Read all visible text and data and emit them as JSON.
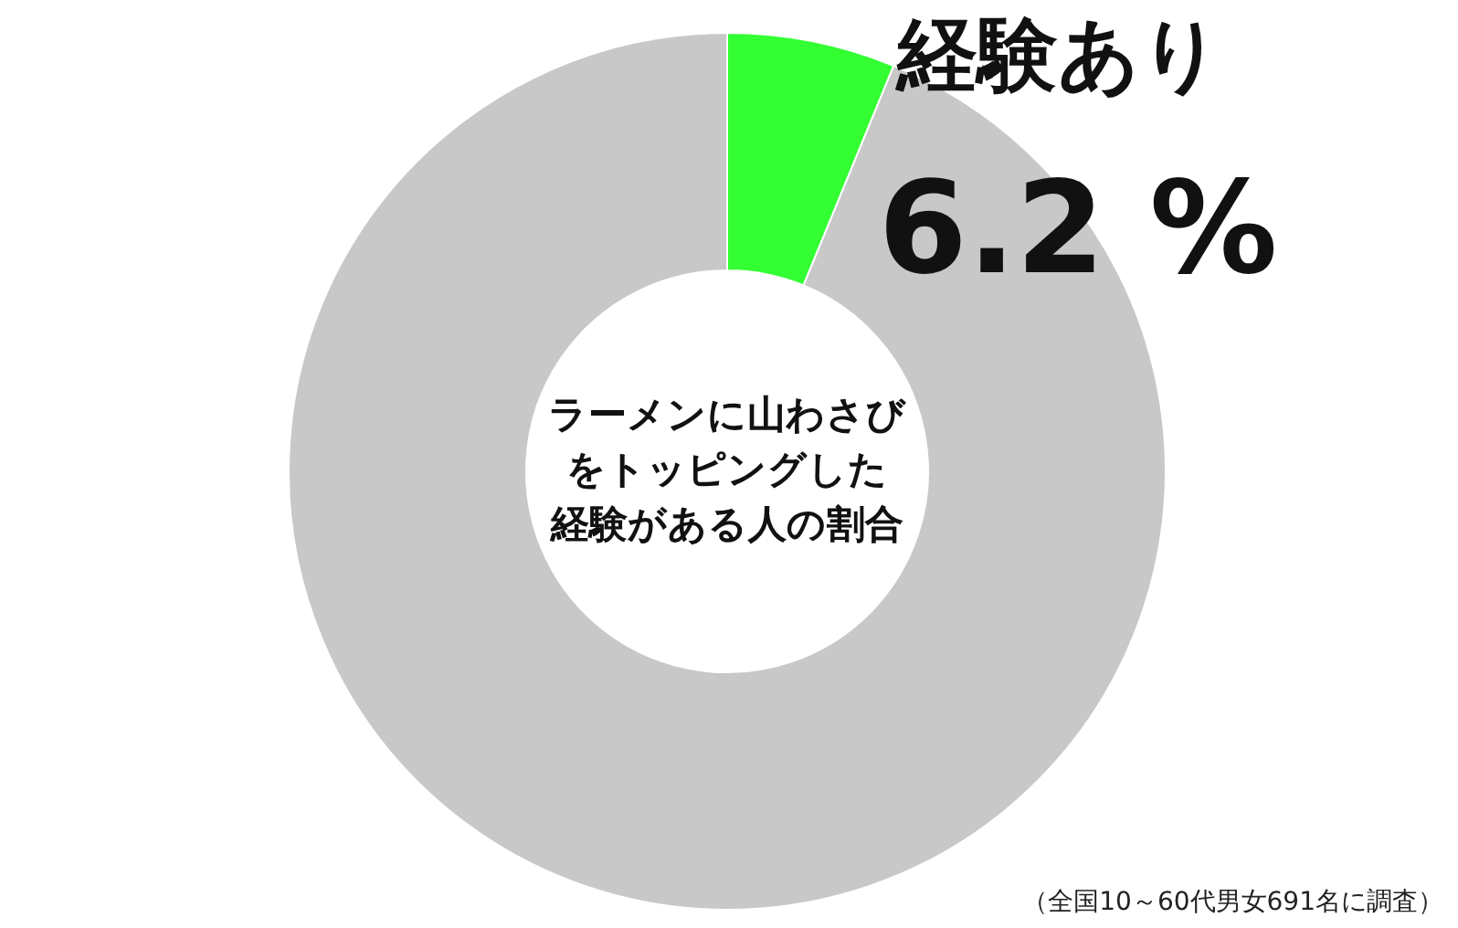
{
  "chart_data": {
    "type": "donut",
    "title": "ラーメンに山わさびをトッピングした経験がある人の割合",
    "categories": [
      "経験あり",
      null
    ],
    "values": [
      6.2,
      93.8
    ],
    "colors": [
      "#33ff33",
      "#c8c8c8"
    ],
    "value_labels": [
      "6.2 %",
      null
    ],
    "annotations": [
      "（全国10～60代男女691名に調査）"
    ]
  }
}
